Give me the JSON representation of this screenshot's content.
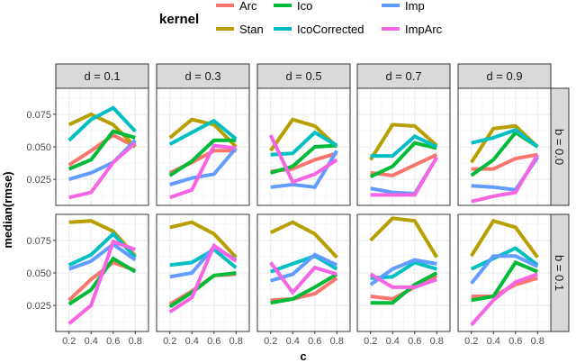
{
  "chart_data": {
    "type": "line",
    "facet_rows_label": "b",
    "facet_cols_label": "d",
    "col_strips": [
      "d = 0.1",
      "d = 0.3",
      "d = 0.5",
      "d = 0.7",
      "d = 0.9"
    ],
    "row_strips": [
      "b = 0.0",
      "b = 0.1"
    ],
    "xlabel": "c",
    "ylabel": "median(rmse)",
    "x": [
      0.2,
      0.4,
      0.6,
      0.8
    ],
    "x_ticks": [
      "0.2",
      "0.4",
      "0.6",
      "0.8"
    ],
    "y_ticks": [
      {
        "v": 0.025,
        "label": "0.025"
      },
      {
        "v": 0.05,
        "label": "0.050"
      },
      {
        "v": 0.075,
        "label": "0.075"
      }
    ],
    "xlim": [
      0.08,
      0.92
    ],
    "ylim": [
      0.005,
      0.095
    ],
    "grid": true,
    "legend": {
      "title": "kernel",
      "placement": "top",
      "entries": [
        {
          "name": "Arc",
          "color": "#F8766D"
        },
        {
          "name": "Stan",
          "color": "#B79F00"
        },
        {
          "name": "Ico",
          "color": "#00BA38"
        },
        {
          "name": "IcoCorrected",
          "color": "#00BFC4"
        },
        {
          "name": "Imp",
          "color": "#619CFF"
        },
        {
          "name": "ImpArc",
          "color": "#F564E3"
        }
      ]
    },
    "panels": [
      {
        "d": "0.1",
        "b": "0.0",
        "series": {
          "Stan": [
            0.067,
            0.075,
            0.067,
            0.05
          ],
          "IcoCorrected": [
            0.055,
            0.071,
            0.08,
            0.062
          ],
          "Arc": [
            0.036,
            0.047,
            0.059,
            0.05
          ],
          "Ico": [
            0.033,
            0.04,
            0.062,
            0.057
          ],
          "Imp": [
            0.025,
            0.03,
            0.038,
            0.055
          ],
          "ImpArc": [
            0.011,
            0.015,
            0.038,
            0.053
          ]
        }
      },
      {
        "d": "0.3",
        "b": "0.0",
        "series": {
          "Stan": [
            0.057,
            0.071,
            0.067,
            0.05
          ],
          "IcoCorrected": [
            0.052,
            0.061,
            0.07,
            0.056
          ],
          "Arc": [
            0.03,
            0.038,
            0.047,
            0.047
          ],
          "Ico": [
            0.028,
            0.039,
            0.055,
            0.055
          ],
          "Imp": [
            0.021,
            0.026,
            0.029,
            0.049
          ],
          "ImpArc": [
            0.011,
            0.017,
            0.051,
            0.049
          ]
        }
      },
      {
        "d": "0.5",
        "b": "0.0",
        "series": {
          "Stan": [
            0.047,
            0.071,
            0.066,
            0.05
          ],
          "IcoCorrected": [
            0.044,
            0.045,
            0.061,
            0.051
          ],
          "Arc": [
            0.031,
            0.033,
            0.04,
            0.045
          ],
          "Ico": [
            0.03,
            0.035,
            0.05,
            0.051
          ],
          "Imp": [
            0.019,
            0.021,
            0.019,
            0.047
          ],
          "ImpArc": [
            0.059,
            0.023,
            0.029,
            0.04
          ]
        }
      },
      {
        "d": "0.7",
        "b": "0.0",
        "series": {
          "Stan": [
            0.04,
            0.067,
            0.066,
            0.051
          ],
          "IcoCorrected": [
            0.043,
            0.043,
            0.058,
            0.05
          ],
          "Arc": [
            0.03,
            0.028,
            0.036,
            0.044
          ],
          "Ico": [
            0.027,
            0.035,
            0.053,
            0.049
          ],
          "Imp": [
            0.018,
            0.015,
            0.014,
            0.042
          ],
          "ImpArc": [
            0.013,
            0.013,
            0.013,
            0.042
          ]
        }
      },
      {
        "d": "0.9",
        "b": "0.0",
        "series": {
          "Stan": [
            0.038,
            0.064,
            0.066,
            0.05
          ],
          "IcoCorrected": [
            0.053,
            0.057,
            0.063,
            0.05
          ],
          "Arc": [
            0.033,
            0.033,
            0.041,
            0.044
          ],
          "Ico": [
            0.028,
            0.04,
            0.061,
            0.05
          ],
          "Imp": [
            0.02,
            0.019,
            0.017,
            0.042
          ],
          "ImpArc": [
            0.008,
            0.012,
            0.015,
            0.044
          ]
        }
      },
      {
        "d": "0.1",
        "b": "0.1",
        "series": {
          "Stan": [
            0.089,
            0.09,
            0.082,
            0.063
          ],
          "IcoCorrected": [
            0.056,
            0.064,
            0.08,
            0.062
          ],
          "Imp": [
            0.053,
            0.059,
            0.072,
            0.06
          ],
          "Arc": [
            0.029,
            0.045,
            0.058,
            0.052
          ],
          "Ico": [
            0.026,
            0.037,
            0.061,
            0.051
          ],
          "ImpArc": [
            0.011,
            0.025,
            0.074,
            0.068
          ]
        }
      },
      {
        "d": "0.3",
        "b": "0.1",
        "series": {
          "Stan": [
            0.085,
            0.089,
            0.08,
            0.062
          ],
          "IcoCorrected": [
            0.056,
            0.058,
            0.068,
            0.054
          ],
          "Imp": [
            0.047,
            0.05,
            0.07,
            0.06
          ],
          "Arc": [
            0.026,
            0.036,
            0.048,
            0.049
          ],
          "Ico": [
            0.024,
            0.035,
            0.048,
            0.05
          ],
          "ImpArc": [
            0.02,
            0.031,
            0.071,
            0.059
          ]
        }
      },
      {
        "d": "0.5",
        "b": "0.1",
        "series": {
          "Stan": [
            0.081,
            0.089,
            0.08,
            0.062
          ],
          "IcoCorrected": [
            0.051,
            0.057,
            0.063,
            0.053
          ],
          "Imp": [
            0.044,
            0.049,
            0.064,
            0.056
          ],
          "ImpArc": [
            0.058,
            0.035,
            0.054,
            0.049
          ],
          "Ico": [
            0.027,
            0.03,
            0.039,
            0.049
          ],
          "Arc": [
            0.029,
            0.03,
            0.034,
            0.046
          ]
        }
      },
      {
        "d": "0.7",
        "b": "0.1",
        "series": {
          "Stan": [
            0.075,
            0.092,
            0.09,
            0.062
          ],
          "IcoCorrected": [
            0.046,
            0.047,
            0.058,
            0.053
          ],
          "Imp": [
            0.041,
            0.053,
            0.06,
            0.057
          ],
          "ImpArc": [
            0.049,
            0.039,
            0.039,
            0.045
          ],
          "Ico": [
            0.027,
            0.027,
            0.041,
            0.05
          ],
          "Arc": [
            0.032,
            0.03,
            0.039,
            0.048
          ]
        }
      },
      {
        "d": "0.9",
        "b": "0.1",
        "series": {
          "Stan": [
            0.063,
            0.09,
            0.085,
            0.062
          ],
          "IcoCorrected": [
            0.053,
            0.061,
            0.069,
            0.056
          ],
          "Imp": [
            0.042,
            0.063,
            0.063,
            0.055
          ],
          "Ico": [
            0.029,
            0.032,
            0.058,
            0.051
          ],
          "Arc": [
            0.032,
            0.032,
            0.041,
            0.046
          ],
          "ImpArc": [
            0.01,
            0.029,
            0.043,
            0.049
          ]
        }
      }
    ]
  }
}
